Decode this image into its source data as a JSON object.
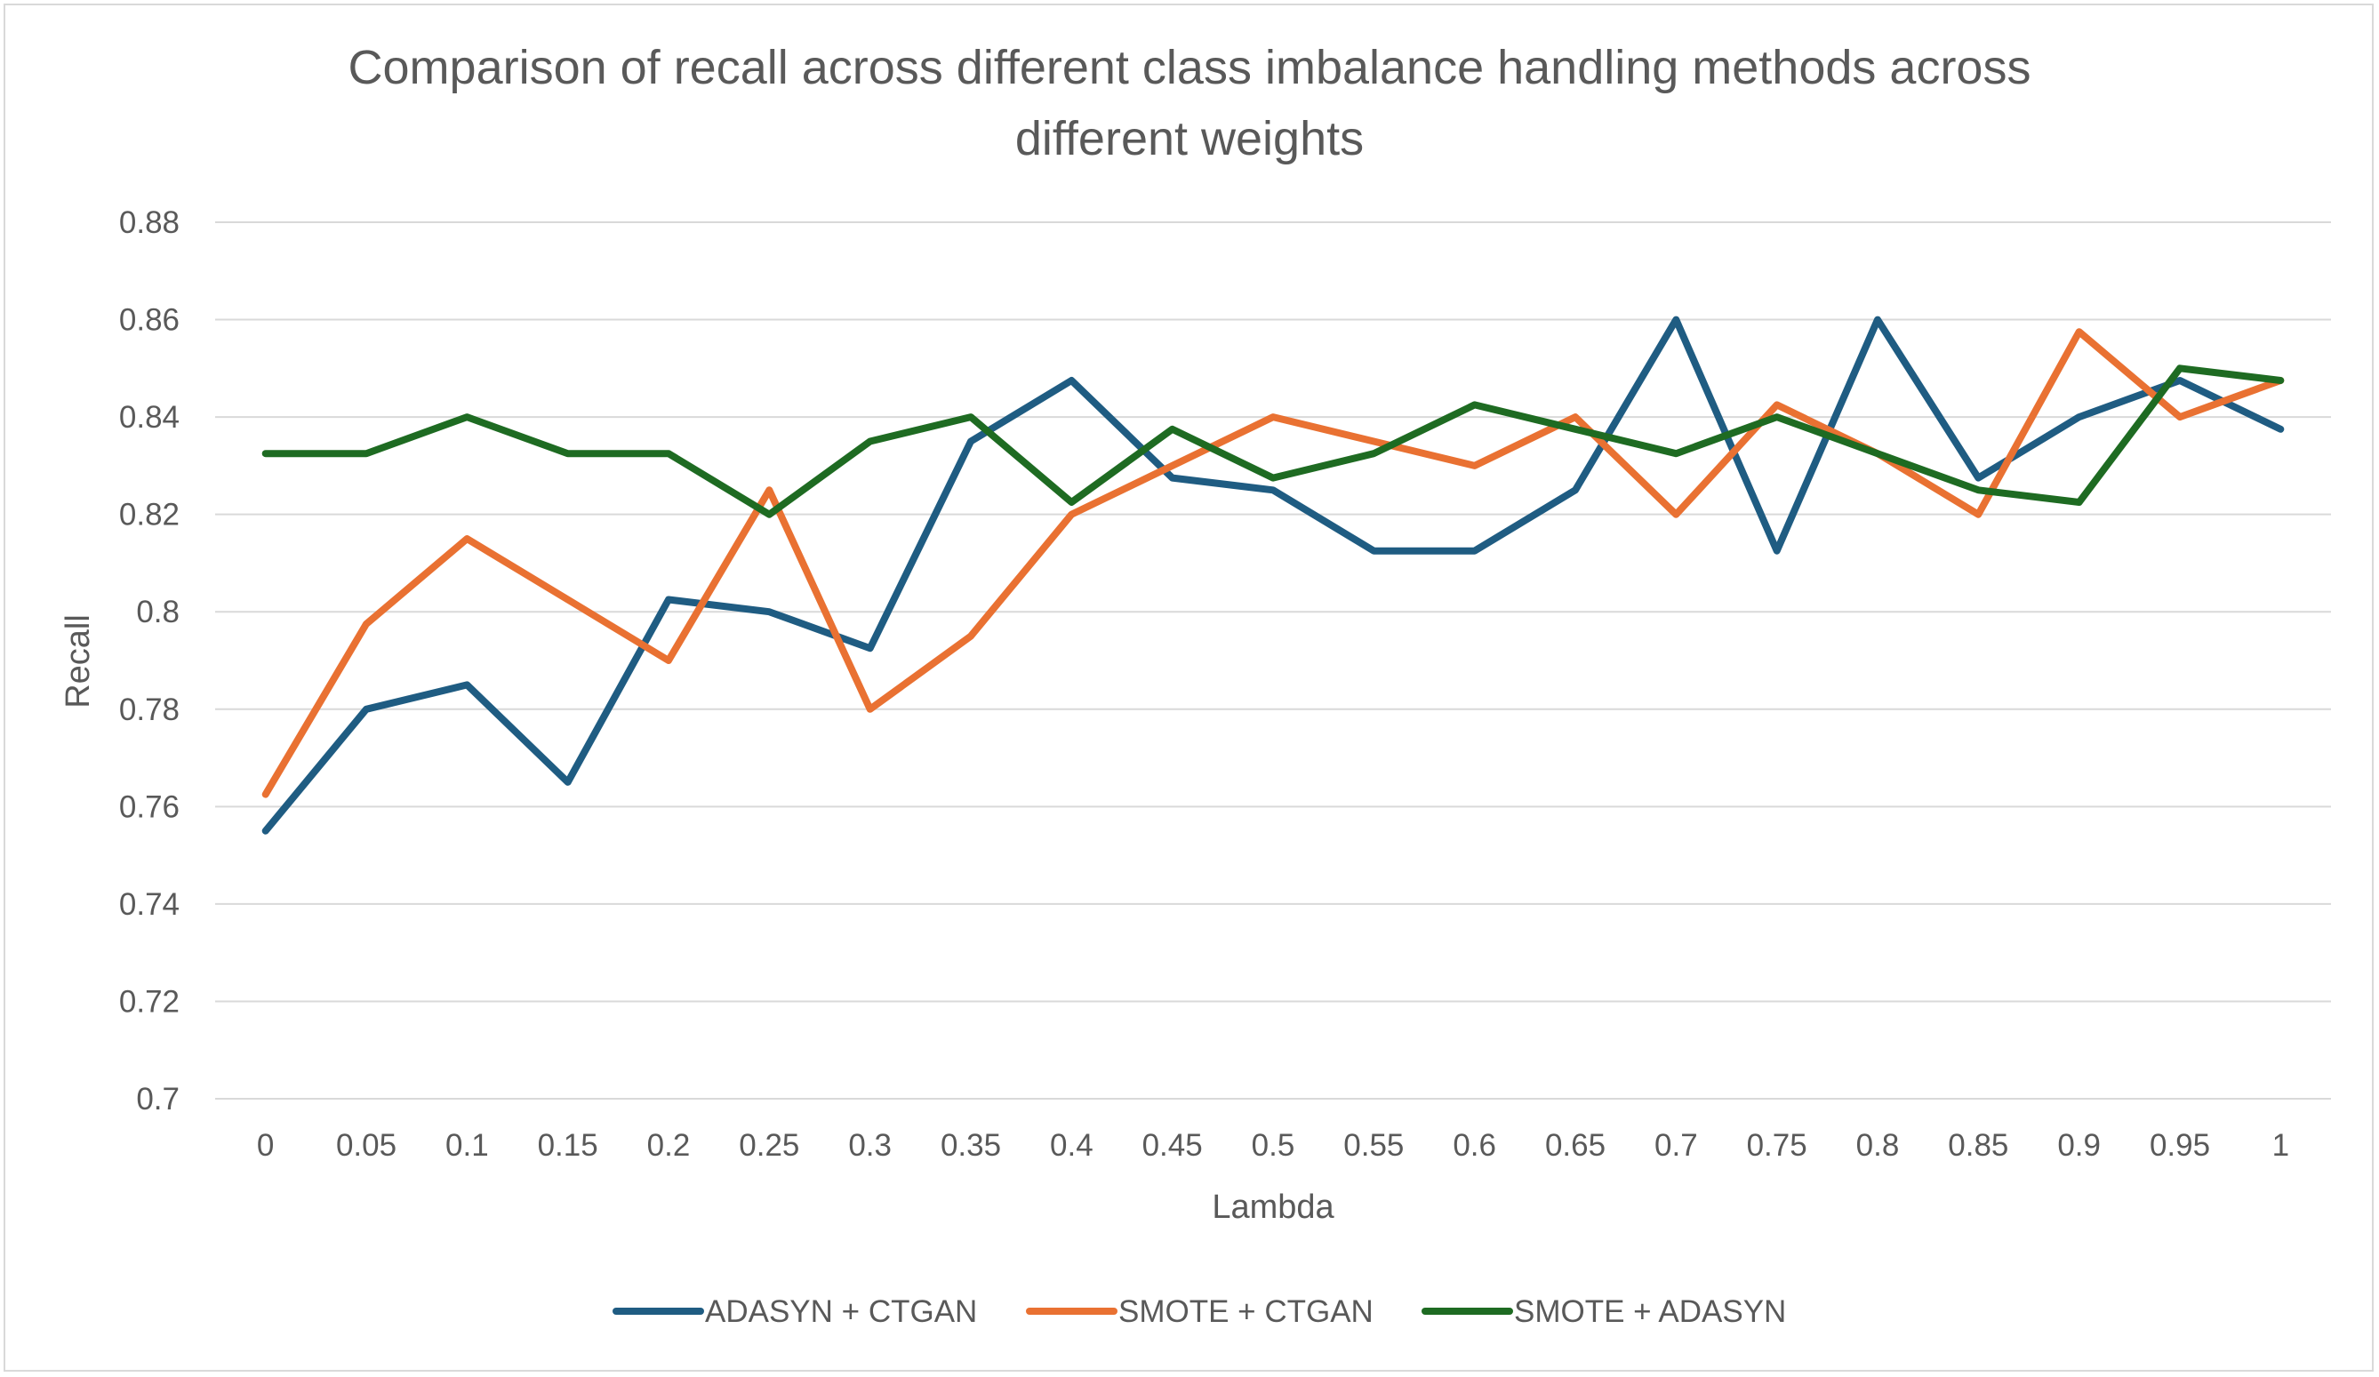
{
  "chart_data": {
    "type": "line",
    "title_lines": [
      "Comparison of recall across different class imbalance handling methods across",
      "different weights"
    ],
    "xlabel": "Lambda",
    "ylabel": "Recall",
    "categories": [
      "0",
      "0.05",
      "0.1",
      "0.15",
      "0.2",
      "0.25",
      "0.3",
      "0.35",
      "0.4",
      "0.45",
      "0.5",
      "0.55",
      "0.6",
      "0.65",
      "0.7",
      "0.75",
      "0.8",
      "0.85",
      "0.9",
      "0.95",
      "1"
    ],
    "ylim": [
      0.7,
      0.88
    ],
    "yticks": [
      0.7,
      0.72,
      0.74,
      0.76,
      0.78,
      0.8,
      0.82,
      0.84,
      0.86,
      0.88
    ],
    "ytick_labels": [
      "0.7",
      "0.72",
      "0.74",
      "0.76",
      "0.78",
      "0.8",
      "0.82",
      "0.84",
      "0.86",
      "0.88"
    ],
    "grid": true,
    "legend_position": "bottom",
    "series": [
      {
        "name": "ADASYN + CTGAN",
        "color": "#1f5c82",
        "values": [
          0.755,
          0.78,
          0.785,
          0.765,
          0.8025,
          0.8,
          0.7925,
          0.835,
          0.8475,
          0.8275,
          0.825,
          0.8125,
          0.8125,
          0.825,
          0.86,
          0.8125,
          0.86,
          0.8275,
          0.84,
          0.8475,
          0.8375
        ]
      },
      {
        "name": "SMOTE + CTGAN",
        "color": "#e97132",
        "values": [
          0.7625,
          0.7975,
          0.815,
          0.8025,
          0.79,
          0.825,
          0.78,
          0.795,
          0.82,
          0.83,
          0.84,
          0.835,
          0.83,
          0.84,
          0.82,
          0.8425,
          0.8325,
          0.82,
          0.8575,
          0.84,
          0.8475
        ]
      },
      {
        "name": "SMOTE + ADASYN",
        "color": "#1e6b22",
        "values": [
          0.8325,
          0.8325,
          0.84,
          0.8325,
          0.8325,
          0.82,
          0.835,
          0.84,
          0.8225,
          0.8375,
          0.8275,
          0.8325,
          0.8425,
          0.8375,
          0.8325,
          0.84,
          0.8325,
          0.825,
          0.8225,
          0.85,
          0.8475
        ]
      }
    ]
  }
}
